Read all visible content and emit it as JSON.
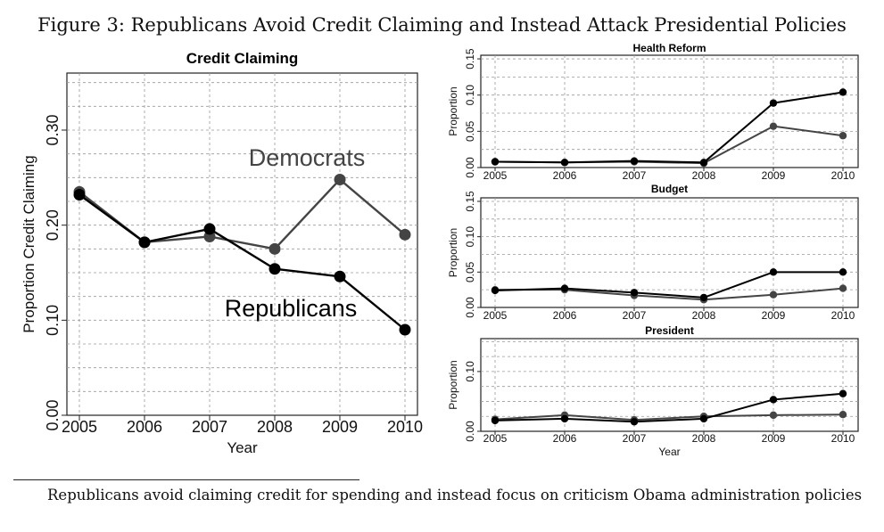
{
  "figure_title": "Figure 3: Republicans Avoid Credit Claiming and Instead Attack Presidential Policies",
  "caption": "Republicans avoid claiming credit for spending and instead focus on criticism Obama administration policies",
  "chart_data": [
    {
      "type": "line",
      "title": "Credit Claiming",
      "xlabel": "Year",
      "ylabel": "Proportion Credit Claiming",
      "x": [
        2005,
        2006,
        2007,
        2008,
        2009,
        2010
      ],
      "xlim": [
        2005,
        2010
      ],
      "ylim": [
        0,
        0.36
      ],
      "yticks": [
        "0.00",
        "0.10",
        "0.20",
        "0.30"
      ],
      "grid": true,
      "series": [
        {
          "name": "Democrats",
          "color": "#444444",
          "values": [
            0.235,
            0.182,
            0.188,
            0.175,
            0.248,
            0.19
          ]
        },
        {
          "name": "Republicans",
          "color": "#000000",
          "values": [
            0.232,
            0.182,
            0.196,
            0.154,
            0.146,
            0.09
          ]
        }
      ]
    },
    {
      "type": "line",
      "title": "Health Reform",
      "ylabel": "Proportion",
      "x": [
        2005,
        2006,
        2007,
        2008,
        2009,
        2010
      ],
      "ylim": [
        0,
        0.155
      ],
      "yticks": [
        "0.00",
        "0.05",
        "0.10",
        "0.15"
      ],
      "grid": true,
      "series": [
        {
          "color": "#444444",
          "values": [
            0.008,
            0.007,
            0.008,
            0.006,
            0.057,
            0.044
          ]
        },
        {
          "color": "#000000",
          "values": [
            0.008,
            0.007,
            0.009,
            0.007,
            0.089,
            0.104
          ]
        }
      ]
    },
    {
      "type": "line",
      "title": "Budget",
      "ylabel": "Proportion",
      "x": [
        2005,
        2006,
        2007,
        2008,
        2009,
        2010
      ],
      "ylim": [
        0,
        0.155
      ],
      "yticks": [
        "0.00",
        "0.05",
        "0.10",
        "0.15"
      ],
      "grid": true,
      "series": [
        {
          "color": "#444444",
          "values": [
            0.025,
            0.025,
            0.017,
            0.011,
            0.018,
            0.027
          ]
        },
        {
          "color": "#000000",
          "values": [
            0.024,
            0.027,
            0.021,
            0.014,
            0.05,
            0.05
          ]
        }
      ]
    },
    {
      "type": "line",
      "title": "President",
      "xlabel": "Year",
      "ylabel": "Proportion",
      "x": [
        2005,
        2006,
        2007,
        2008,
        2009,
        2010
      ],
      "ylim": [
        0,
        0.155
      ],
      "yticks": [
        "0.00",
        "0.10"
      ],
      "grid": true,
      "series": [
        {
          "color": "#444444",
          "values": [
            0.02,
            0.027,
            0.019,
            0.025,
            0.027,
            0.028
          ]
        },
        {
          "color": "#000000",
          "values": [
            0.018,
            0.021,
            0.016,
            0.021,
            0.053,
            0.063
          ]
        }
      ]
    }
  ]
}
